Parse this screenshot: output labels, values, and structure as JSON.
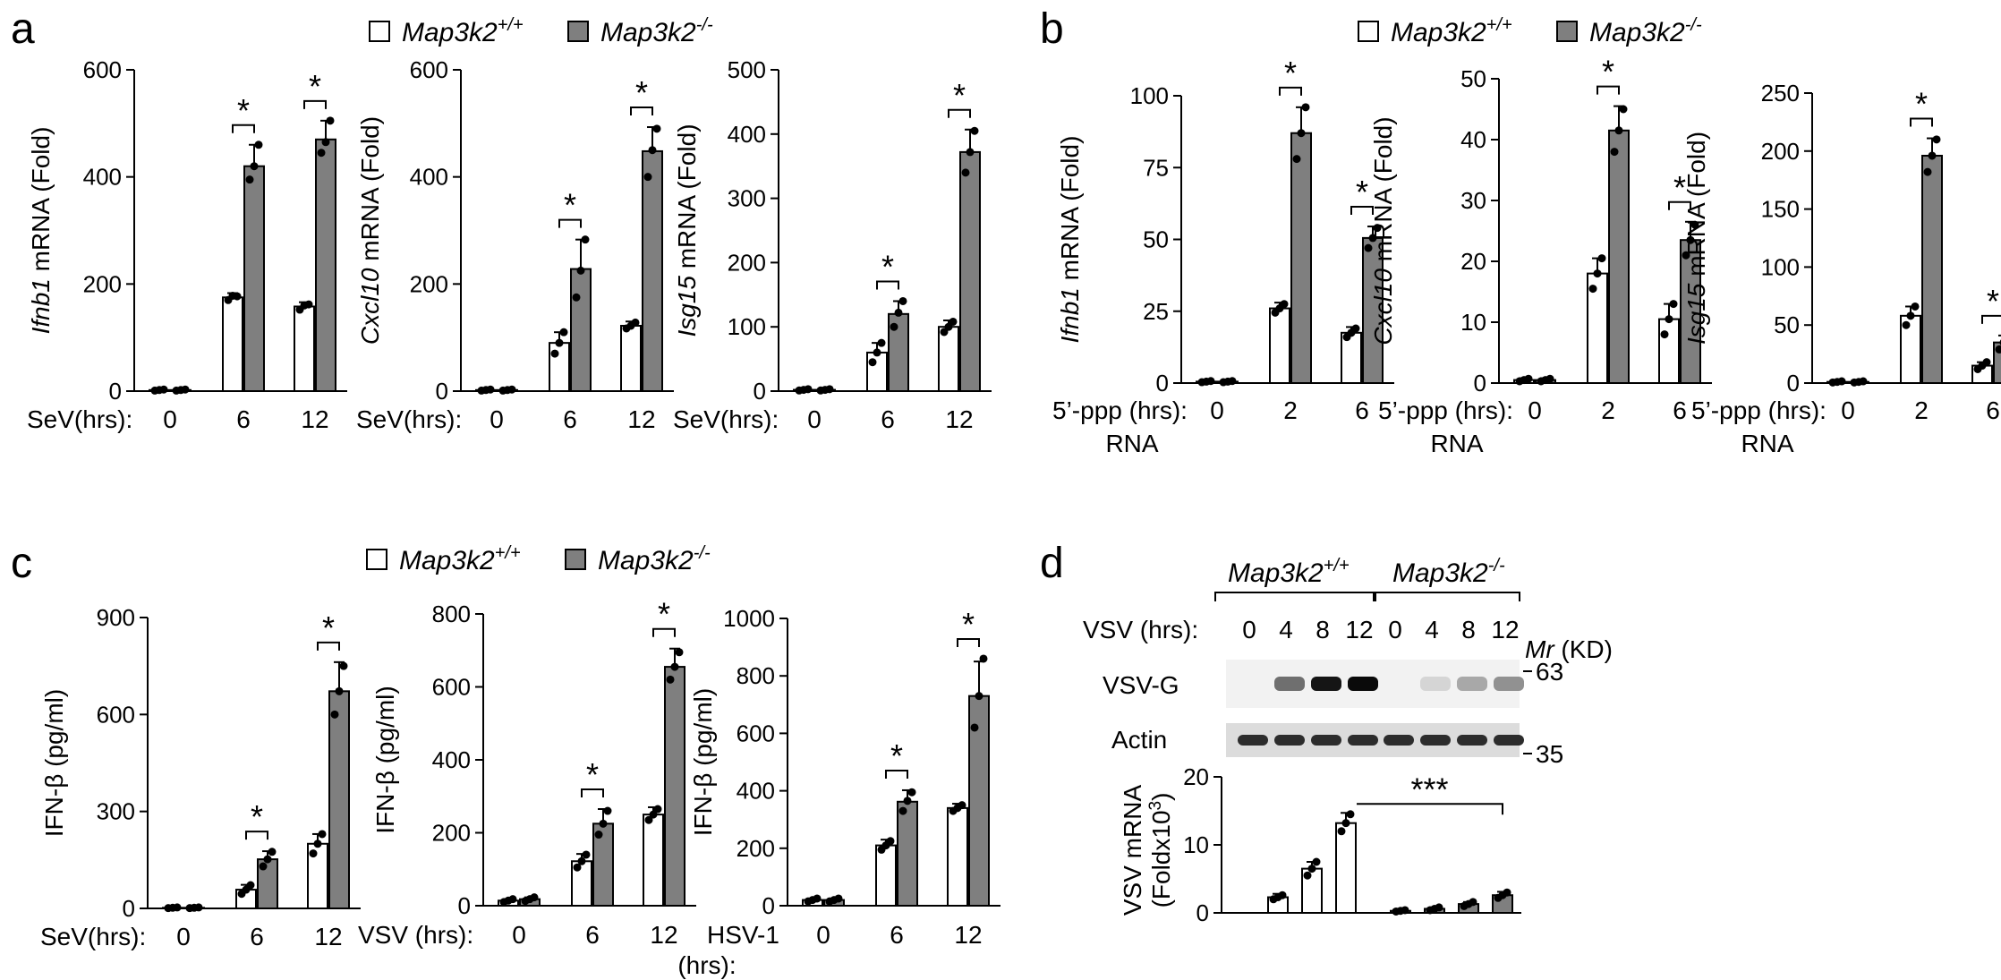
{
  "panel_letters": [
    "a",
    "b",
    "c",
    "d"
  ],
  "legend": {
    "wt": {
      "base": "Map3k2",
      "sup": "+/+"
    },
    "ko": {
      "base": "Map3k2",
      "sup": "-/-"
    },
    "wt_color": "#ffffff",
    "ko_color": "#7f7f7f"
  },
  "chart_data": [
    {
      "id": "a1",
      "panel": "a",
      "type": "bar",
      "ylabel_italic": "Ifnb1",
      "ylabel_rest": " mRNA (Fold)",
      "xtitle": "SeV(hrs):",
      "categories": [
        "0",
        "6",
        "12"
      ],
      "ylim": [
        0,
        600
      ],
      "yticks": [
        "0",
        "200",
        "400",
        "600"
      ],
      "series": [
        {
          "name": "Map3k2+/+",
          "values": [
            2,
            175,
            158
          ],
          "errors": [
            1,
            8,
            8
          ],
          "points": [
            [
              1,
              2,
              3
            ],
            [
              170,
              178,
              177
            ],
            [
              152,
              160,
              162
            ]
          ]
        },
        {
          "name": "Map3k2-/-",
          "values": [
            2,
            420,
            470
          ],
          "errors": [
            1,
            40,
            35
          ],
          "points": [
            [
              1,
              2,
              3
            ],
            [
              395,
              420,
              460
            ],
            [
              445,
              465,
              505
            ]
          ]
        }
      ],
      "significance": [
        {
          "category": "6",
          "label": "*"
        },
        {
          "category": "12",
          "label": "*"
        }
      ]
    },
    {
      "id": "a2",
      "panel": "a",
      "type": "bar",
      "ylabel_italic": "Cxcl10",
      "ylabel_rest": " mRNA (Fold)",
      "xtitle": "SeV(hrs):",
      "categories": [
        "0",
        "6",
        "12"
      ],
      "ylim": [
        0,
        600
      ],
      "yticks": [
        "0",
        "200",
        "400",
        "600"
      ],
      "series": [
        {
          "name": "Map3k2+/+",
          "values": [
            2,
            90,
            122
          ],
          "errors": [
            1,
            20,
            8
          ],
          "points": [
            [
              1,
              2,
              3
            ],
            [
              70,
              90,
              110
            ],
            [
              117,
              122,
              128
            ]
          ]
        },
        {
          "name": "Map3k2-/-",
          "values": [
            2,
            228,
            448
          ],
          "errors": [
            1,
            55,
            45
          ],
          "points": [
            [
              1,
              2,
              3
            ],
            [
              175,
              225,
              283
            ],
            [
              400,
              450,
              490
            ]
          ]
        }
      ],
      "significance": [
        {
          "category": "6",
          "label": "*"
        },
        {
          "category": "12",
          "label": "*"
        }
      ]
    },
    {
      "id": "a3",
      "panel": "a",
      "type": "bar",
      "ylabel_italic": "Isg15",
      "ylabel_rest": " mRNA (Fold)",
      "xtitle": "SeV(hrs):",
      "categories": [
        "0",
        "6",
        "12"
      ],
      "ylim": [
        0,
        500
      ],
      "yticks": [
        "0",
        "100",
        "200",
        "300",
        "400",
        "500"
      ],
      "series": [
        {
          "name": "Map3k2+/+",
          "values": [
            2,
            60,
            100
          ],
          "errors": [
            1,
            15,
            10
          ],
          "points": [
            [
              1,
              2,
              3
            ],
            [
              45,
              60,
              75
            ],
            [
              92,
              100,
              108
            ]
          ]
        },
        {
          "name": "Map3k2-/-",
          "values": [
            2,
            120,
            372
          ],
          "errors": [
            1,
            20,
            35
          ],
          "points": [
            [
              1,
              2,
              3
            ],
            [
              100,
              122,
              140
            ],
            [
              340,
              372,
              405
            ]
          ]
        }
      ],
      "significance": [
        {
          "category": "6",
          "label": "*"
        },
        {
          "category": "12",
          "label": "*"
        }
      ]
    },
    {
      "id": "b1",
      "panel": "b",
      "type": "bar",
      "ylabel_italic": "Ifnb1",
      "ylabel_rest": " mRNA (Fold)",
      "xtitle": "5’-ppp (hrs):",
      "xtitle2": "RNA",
      "categories": [
        "0",
        "2",
        "6"
      ],
      "ylim": [
        0,
        100
      ],
      "yticks": [
        "0",
        "25",
        "50",
        "75",
        "100"
      ],
      "series": [
        {
          "name": "Map3k2+/+",
          "values": [
            0.5,
            26,
            17.5
          ],
          "errors": [
            0.3,
            2,
            2
          ],
          "points": [
            [
              0.3,
              0.5,
              0.7
            ],
            [
              24.5,
              26,
              27.5
            ],
            [
              16,
              17.5,
              19
            ]
          ]
        },
        {
          "name": "Map3k2-/-",
          "values": [
            0.5,
            87,
            50.5
          ],
          "errors": [
            0.3,
            9,
            4
          ],
          "points": [
            [
              0.3,
              0.5,
              0.7
            ],
            [
              78,
              87,
              96
            ],
            [
              47,
              50.5,
              54
            ]
          ]
        }
      ],
      "significance": [
        {
          "category": "2",
          "label": "*"
        },
        {
          "category": "6",
          "label": "*"
        }
      ]
    },
    {
      "id": "b2",
      "panel": "b",
      "type": "bar",
      "ylabel_italic": "Cxcl10",
      "ylabel_rest": " mRNA (Fold)",
      "xtitle": "5’-ppp (hrs):",
      "xtitle2": "RNA",
      "categories": [
        "0",
        "2",
        "6"
      ],
      "ylim": [
        0,
        50
      ],
      "yticks": [
        "0",
        "10",
        "20",
        "30",
        "40",
        "50"
      ],
      "series": [
        {
          "name": "Map3k2+/+",
          "values": [
            0.5,
            18,
            10.5
          ],
          "errors": [
            0.3,
            2.5,
            2.5
          ],
          "points": [
            [
              0.3,
              0.5,
              0.7
            ],
            [
              15.5,
              18,
              20.5
            ],
            [
              8,
              10.5,
              13
            ]
          ]
        },
        {
          "name": "Map3k2-/-",
          "values": [
            0.5,
            41.5,
            23.5
          ],
          "errors": [
            0.3,
            4,
            3
          ],
          "points": [
            [
              0.3,
              0.5,
              0.7
            ],
            [
              38,
              41.5,
              45
            ],
            [
              21,
              23.5,
              26
            ]
          ]
        }
      ],
      "significance": [
        {
          "category": "2",
          "label": "*"
        },
        {
          "category": "6",
          "label": "*"
        }
      ]
    },
    {
      "id": "b3",
      "panel": "b",
      "type": "bar",
      "ylabel_italic": "Isg15",
      "ylabel_rest": " mRNA (Fold)",
      "xtitle": "5’-ppp (hrs):",
      "xtitle2": "RNA",
      "categories": [
        "0",
        "2",
        "6"
      ],
      "ylim": [
        0,
        250
      ],
      "yticks": [
        "0",
        "50",
        "100",
        "150",
        "200",
        "250"
      ],
      "series": [
        {
          "name": "Map3k2+/+",
          "values": [
            1,
            58,
            15
          ],
          "errors": [
            0.5,
            8,
            3
          ],
          "points": [
            [
              0.5,
              1,
              1.5
            ],
            [
              50,
              58,
              66
            ],
            [
              12,
              15,
              18
            ]
          ]
        },
        {
          "name": "Map3k2-/-",
          "values": [
            1,
            196,
            35
          ],
          "errors": [
            0.5,
            15,
            6
          ],
          "points": [
            [
              0.5,
              1,
              1.5
            ],
            [
              182,
              196,
              210
            ],
            [
              29,
              35,
              41
            ]
          ]
        }
      ],
      "significance": [
        {
          "category": "2",
          "label": "*"
        },
        {
          "category": "6",
          "label": "*"
        }
      ]
    },
    {
      "id": "c1",
      "panel": "c",
      "type": "bar",
      "ylabel": "IFN-β (pg/ml)",
      "xtitle": "SeV(hrs):",
      "categories": [
        "0",
        "6",
        "12"
      ],
      "ylim": [
        0,
        900
      ],
      "yticks": [
        "0",
        "300",
        "600",
        "900"
      ],
      "series": [
        {
          "name": "Map3k2+/+",
          "values": [
            2,
            58,
            200
          ],
          "errors": [
            1,
            15,
            30
          ],
          "points": [
            [
              1,
              2,
              3
            ],
            [
              45,
              58,
              72
            ],
            [
              170,
              200,
              230
            ]
          ]
        },
        {
          "name": "Map3k2-/-",
          "values": [
            2,
            152,
            672
          ],
          "errors": [
            1,
            25,
            90
          ],
          "points": [
            [
              1,
              2,
              3
            ],
            [
              130,
              152,
              175
            ],
            [
              600,
              672,
              750
            ]
          ]
        }
      ],
      "significance": [
        {
          "category": "6",
          "label": "*"
        },
        {
          "category": "12",
          "label": "*"
        }
      ]
    },
    {
      "id": "c2",
      "panel": "c",
      "type": "bar",
      "ylabel": "IFN-β (pg/ml)",
      "xtitle": "VSV (hrs):",
      "categories": [
        "0",
        "6",
        "12"
      ],
      "ylim": [
        0,
        800
      ],
      "yticks": [
        "0",
        "200",
        "400",
        "600",
        "800"
      ],
      "series": [
        {
          "name": "Map3k2+/+",
          "values": [
            14,
            122,
            250
          ],
          "errors": [
            4,
            20,
            20
          ],
          "points": [
            [
              10,
              14,
              18
            ],
            [
              105,
              122,
              140
            ],
            [
              235,
              250,
              265
            ]
          ]
        },
        {
          "name": "Map3k2-/-",
          "values": [
            18,
            225,
            655
          ],
          "errors": [
            5,
            40,
            50
          ],
          "points": [
            [
              13,
              18,
              23
            ],
            [
              195,
              225,
              260
            ],
            [
              620,
              655,
              695
            ]
          ]
        }
      ],
      "significance": [
        {
          "category": "6",
          "label": "*"
        },
        {
          "category": "12",
          "label": "*"
        }
      ]
    },
    {
      "id": "c3",
      "panel": "c",
      "type": "bar",
      "ylabel": "IFN-β (pg/ml)",
      "xtitle": "HSV-1",
      "xtitle2": "(hrs):",
      "categories": [
        "0",
        "6",
        "12"
      ],
      "ylim": [
        0,
        1000
      ],
      "yticks": [
        "0",
        "200",
        "400",
        "600",
        "800",
        "1000"
      ],
      "series": [
        {
          "name": "Map3k2+/+",
          "values": [
            20,
            210,
            340
          ],
          "errors": [
            5,
            20,
            15
          ],
          "points": [
            [
              15,
              20,
              25
            ],
            [
              195,
              210,
              225
            ],
            [
              330,
              340,
              350
            ]
          ]
        },
        {
          "name": "Map3k2-/-",
          "values": [
            20,
            362,
            730
          ],
          "errors": [
            5,
            40,
            120
          ],
          "points": [
            [
              15,
              20,
              25
            ],
            [
              330,
              365,
              395
            ],
            [
              620,
              730,
              860
            ]
          ]
        }
      ],
      "significance": [
        {
          "category": "6",
          "label": "*"
        },
        {
          "category": "12",
          "label": "*"
        }
      ]
    },
    {
      "id": "d1",
      "panel": "d",
      "type": "bar",
      "ylabel": "VSV mRNA",
      "ylabel2_prefix": "(Foldx10",
      "ylabel2_sup": "3",
      "ylabel2_suffix": ")",
      "categories": [
        "0",
        "4",
        "8",
        "12",
        "0",
        "4",
        "8",
        "12"
      ],
      "ylim": [
        0,
        20
      ],
      "yticks": [
        "0",
        "10",
        "20"
      ],
      "values": [
        0,
        2.3,
        6.5,
        13.2,
        0.3,
        0.6,
        1.3,
        2.6
      ],
      "errors": [
        0,
        0.5,
        1.0,
        1.5,
        0.1,
        0.2,
        0.3,
        0.5
      ],
      "points": [
        [
          0,
          0,
          0
        ],
        [
          2.0,
          2.3,
          2.6
        ],
        [
          5.5,
          6.5,
          7.5
        ],
        [
          12.0,
          13.2,
          14.5
        ],
        [
          0.2,
          0.3,
          0.4
        ],
        [
          0.4,
          0.6,
          0.8
        ],
        [
          1.0,
          1.3,
          1.6
        ],
        [
          2.2,
          2.6,
          3.0
        ]
      ],
      "significance_label": "***"
    }
  ],
  "blot": {
    "group_wt": {
      "base": "Map3k2",
      "sup": "+/+"
    },
    "group_ko": {
      "base": "Map3k2",
      "sup": "-/-"
    },
    "time_title": "VSV (hrs):",
    "times": [
      "0",
      "4",
      "8",
      "12",
      "0",
      "4",
      "8",
      "12"
    ],
    "mr_italic": "Mr",
    "mr_rest": " (KD)",
    "rows": [
      {
        "name": "VSV-G",
        "intensities": [
          0.0,
          0.55,
          0.95,
          1.0,
          0.0,
          0.1,
          0.3,
          0.4
        ]
      },
      {
        "name": "Actin",
        "intensities": [
          0.85,
          0.85,
          0.85,
          0.85,
          0.85,
          0.85,
          0.85,
          0.85
        ]
      }
    ],
    "markers": [
      "63",
      "35"
    ]
  }
}
